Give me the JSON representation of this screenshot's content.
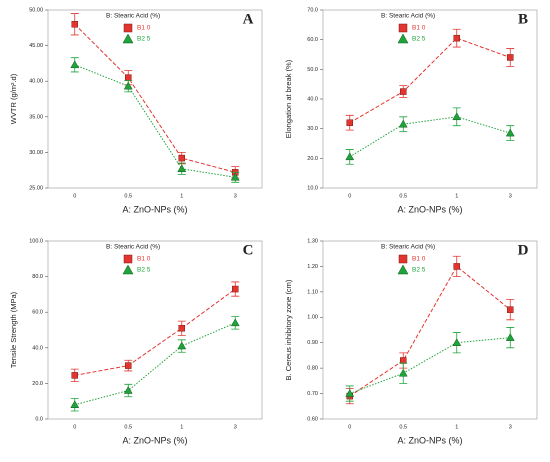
{
  "chart_data": [
    {
      "type": "line",
      "label": "A",
      "xlabel": "A: ZnO-NPs (%)",
      "ylabel": "WVTR (g/m².d)",
      "legend_title": "B: Stearic Acid (%)",
      "categories": [
        "0",
        "0.5",
        "1",
        "3"
      ],
      "ylim": [
        25,
        50
      ],
      "yticks": [
        {
          "value": 25,
          "label": "25.00"
        },
        {
          "value": 30,
          "label": "30.00"
        },
        {
          "value": 35,
          "label": "35.00"
        },
        {
          "value": 40,
          "label": "40.00"
        },
        {
          "value": 45,
          "label": "45.00"
        },
        {
          "value": 50,
          "label": "50.00"
        }
      ],
      "series": [
        {
          "name": "B1 0",
          "color": "#e3342f",
          "values": [
            48,
            40.5,
            29.2,
            27.2
          ],
          "errors": [
            1.5,
            1,
            0.8,
            0.8
          ]
        },
        {
          "name": "B2 5",
          "color": "#1fa33a",
          "values": [
            42.3,
            39.3,
            27.7,
            26.5
          ],
          "errors": [
            1,
            0.8,
            0.8,
            0.7
          ]
        }
      ]
    },
    {
      "type": "line",
      "label": "B",
      "xlabel": "A: ZnO-NPs (%)",
      "ylabel": "Elongation at break (%)",
      "legend_title": "B: Stearic Acid (%)",
      "categories": [
        "0",
        "0.5",
        "1",
        "3"
      ],
      "ylim": [
        10,
        70
      ],
      "yticks": [
        {
          "value": 10,
          "label": "10.0"
        },
        {
          "value": 20,
          "label": "20.0"
        },
        {
          "value": 30,
          "label": "30.0"
        },
        {
          "value": 40,
          "label": "40.0"
        },
        {
          "value": 50,
          "label": "50.0"
        },
        {
          "value": 60,
          "label": "60.0"
        },
        {
          "value": 70,
          "label": "70.0"
        }
      ],
      "series": [
        {
          "name": "B1 0",
          "color": "#e3342f",
          "values": [
            32,
            42.5,
            60.5,
            54
          ],
          "errors": [
            2.5,
            2,
            3,
            3
          ]
        },
        {
          "name": "B2 5",
          "color": "#1fa33a",
          "values": [
            20.5,
            31.5,
            34,
            28.5
          ],
          "errors": [
            2.5,
            2.5,
            3,
            2.5
          ]
        }
      ]
    },
    {
      "type": "line",
      "label": "C",
      "xlabel": "A: ZnO-NPs (%)",
      "ylabel": "Tensile Strength (MPa)",
      "legend_title": "B: Stearic Acid (%)",
      "categories": [
        "0",
        "0.5",
        "1",
        "3"
      ],
      "ylim": [
        0,
        100
      ],
      "yticks": [
        {
          "value": 0,
          "label": "0.0"
        },
        {
          "value": 20,
          "label": "20.0"
        },
        {
          "value": 40,
          "label": "40.0"
        },
        {
          "value": 60,
          "label": "60.0"
        },
        {
          "value": 80,
          "label": "80.0"
        },
        {
          "value": 100,
          "label": "100.0"
        }
      ],
      "series": [
        {
          "name": "B1 0",
          "color": "#e3342f",
          "values": [
            24.5,
            30,
            51,
            73
          ],
          "errors": [
            3.5,
            3,
            4,
            4
          ]
        },
        {
          "name": "B2 5",
          "color": "#1fa33a",
          "values": [
            8,
            16,
            41,
            54
          ],
          "errors": [
            3.5,
            3.5,
            3.5,
            3.5
          ]
        }
      ]
    },
    {
      "type": "line",
      "label": "D",
      "xlabel": "A: ZnO-NPs (%)",
      "ylabel": "B. Cereus inhibitory zone (cm)",
      "legend_title": "B: Stearic Acid (%)",
      "categories": [
        "0",
        "0.5",
        "1",
        "3"
      ],
      "ylim": [
        0.6,
        1.3
      ],
      "yticks": [
        {
          "value": 0.6,
          "label": "0.60"
        },
        {
          "value": 0.7,
          "label": "0.70"
        },
        {
          "value": 0.8,
          "label": "0.80"
        },
        {
          "value": 0.9,
          "label": "0.90"
        },
        {
          "value": 1.0,
          "label": "1.00"
        },
        {
          "value": 1.1,
          "label": "1.10"
        },
        {
          "value": 1.2,
          "label": "1.20"
        },
        {
          "value": 1.3,
          "label": "1.30"
        }
      ],
      "series": [
        {
          "name": "B1 0",
          "color": "#e3342f",
          "values": [
            0.69,
            0.83,
            1.2,
            1.03
          ],
          "errors": [
            0.03,
            0.03,
            0.04,
            0.04
          ]
        },
        {
          "name": "B2 5",
          "color": "#1fa33a",
          "values": [
            0.7,
            0.78,
            0.9,
            0.92
          ],
          "errors": [
            0.03,
            0.04,
            0.04,
            0.04
          ]
        }
      ]
    }
  ]
}
